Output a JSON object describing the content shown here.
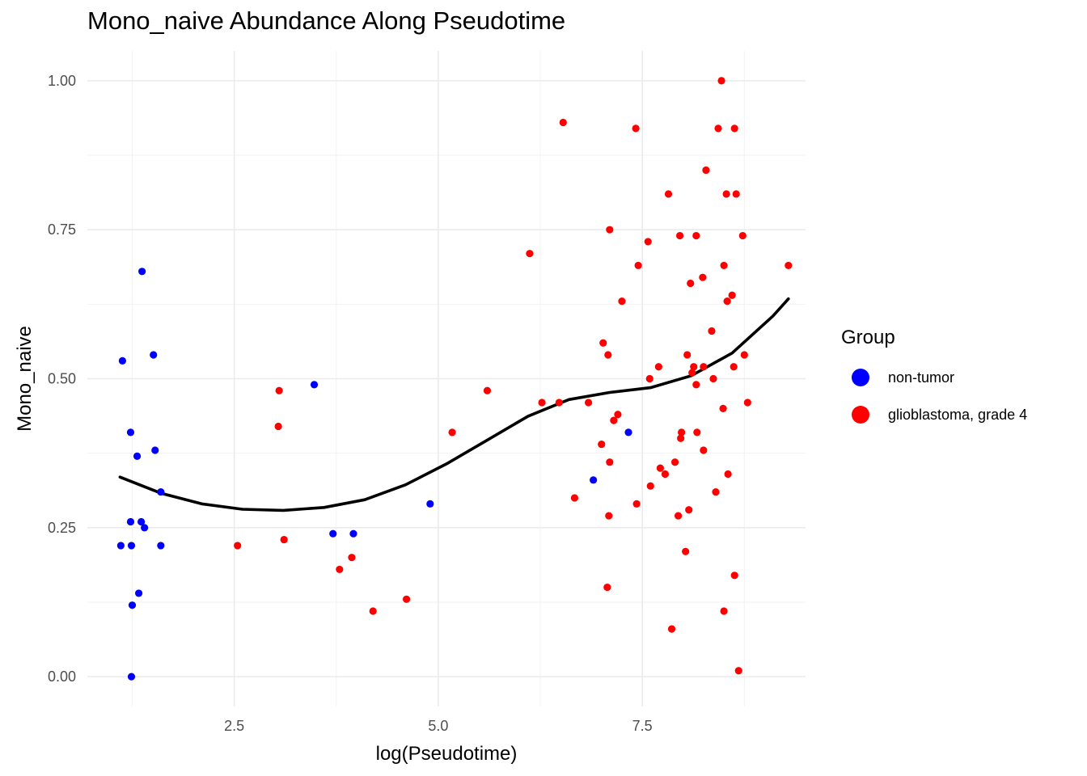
{
  "chart_data": {
    "type": "scatter",
    "title": "Mono_naive Abundance Along Pseudotime",
    "xlabel": "log(Pseudotime)",
    "ylabel": "Mono_naive",
    "xlim": [
      0.7,
      9.5
    ],
    "ylim": [
      -0.05,
      1.05
    ],
    "x_ticks": [
      2.5,
      5.0,
      7.5
    ],
    "x_tick_labels": [
      "2.5",
      "5.0",
      "7.5"
    ],
    "y_ticks": [
      0.0,
      0.25,
      0.5,
      0.75,
      1.0
    ],
    "y_tick_labels": [
      "0.00",
      "0.25",
      "0.50",
      "0.75",
      "1.00"
    ],
    "grid": true,
    "legend": {
      "title": "Group",
      "position": "right"
    },
    "series": [
      {
        "name": "non-tumor",
        "color": "#0000ff",
        "points": [
          [
            1.13,
            0.53
          ],
          [
            1.37,
            0.68
          ],
          [
            1.51,
            0.54
          ],
          [
            1.23,
            0.41
          ],
          [
            1.53,
            0.38
          ],
          [
            1.31,
            0.37
          ],
          [
            1.6,
            0.31
          ],
          [
            1.23,
            0.26
          ],
          [
            1.36,
            0.26
          ],
          [
            1.4,
            0.25
          ],
          [
            1.11,
            0.22
          ],
          [
            1.24,
            0.22
          ],
          [
            1.6,
            0.22
          ],
          [
            1.33,
            0.14
          ],
          [
            1.25,
            0.12
          ],
          [
            1.24,
            0.0
          ],
          [
            3.48,
            0.49
          ],
          [
            3.71,
            0.24
          ],
          [
            3.96,
            0.24
          ],
          [
            4.9,
            0.29
          ],
          [
            6.9,
            0.33
          ],
          [
            7.33,
            0.41
          ]
        ]
      },
      {
        "name": "glioblastoma, grade 4",
        "color": "#ff0000",
        "points": [
          [
            3.05,
            0.48
          ],
          [
            3.04,
            0.42
          ],
          [
            3.11,
            0.23
          ],
          [
            2.54,
            0.22
          ],
          [
            3.79,
            0.18
          ],
          [
            3.94,
            0.2
          ],
          [
            4.2,
            0.11
          ],
          [
            4.61,
            0.13
          ],
          [
            5.17,
            0.41
          ],
          [
            5.6,
            0.48
          ],
          [
            6.12,
            0.71
          ],
          [
            6.27,
            0.46
          ],
          [
            6.48,
            0.46
          ],
          [
            6.53,
            0.93
          ],
          [
            6.67,
            0.3
          ],
          [
            6.84,
            0.46
          ],
          [
            7.0,
            0.39
          ],
          [
            7.02,
            0.56
          ],
          [
            7.07,
            0.15
          ],
          [
            7.08,
            0.54
          ],
          [
            7.1,
            0.75
          ],
          [
            7.1,
            0.36
          ],
          [
            7.09,
            0.27
          ],
          [
            7.15,
            0.43
          ],
          [
            7.2,
            0.44
          ],
          [
            7.25,
            0.63
          ],
          [
            7.42,
            0.92
          ],
          [
            7.45,
            0.69
          ],
          [
            7.43,
            0.29
          ],
          [
            7.57,
            0.73
          ],
          [
            7.59,
            0.5
          ],
          [
            7.6,
            0.32
          ],
          [
            7.7,
            0.52
          ],
          [
            7.72,
            0.35
          ],
          [
            7.78,
            0.34
          ],
          [
            7.82,
            0.81
          ],
          [
            7.86,
            0.08
          ],
          [
            7.9,
            0.36
          ],
          [
            7.94,
            0.27
          ],
          [
            7.96,
            0.74
          ],
          [
            7.97,
            0.4
          ],
          [
            7.98,
            0.41
          ],
          [
            8.03,
            0.21
          ],
          [
            8.05,
            0.54
          ],
          [
            8.07,
            0.28
          ],
          [
            8.09,
            0.66
          ],
          [
            8.11,
            0.51
          ],
          [
            8.13,
            0.52
          ],
          [
            8.16,
            0.74
          ],
          [
            8.16,
            0.49
          ],
          [
            8.17,
            0.41
          ],
          [
            8.24,
            0.67
          ],
          [
            8.25,
            0.52
          ],
          [
            8.25,
            0.38
          ],
          [
            8.28,
            0.85
          ],
          [
            8.35,
            0.58
          ],
          [
            8.37,
            0.5
          ],
          [
            8.4,
            0.31
          ],
          [
            8.43,
            0.92
          ],
          [
            8.47,
            1.0
          ],
          [
            8.49,
            0.45
          ],
          [
            8.5,
            0.69
          ],
          [
            8.5,
            0.11
          ],
          [
            8.53,
            0.81
          ],
          [
            8.54,
            0.63
          ],
          [
            8.55,
            0.34
          ],
          [
            8.6,
            0.64
          ],
          [
            8.62,
            0.52
          ],
          [
            8.63,
            0.92
          ],
          [
            8.63,
            0.17
          ],
          [
            8.65,
            0.81
          ],
          [
            8.68,
            0.01
          ],
          [
            8.73,
            0.74
          ],
          [
            8.75,
            0.54
          ],
          [
            8.79,
            0.46
          ],
          [
            9.29,
            0.69
          ]
        ]
      }
    ],
    "trend_line": {
      "color": "#000000",
      "x": [
        1.1,
        1.6,
        2.1,
        2.6,
        3.1,
        3.6,
        4.1,
        4.6,
        5.1,
        5.6,
        6.1,
        6.6,
        7.1,
        7.6,
        8.1,
        8.6,
        9.1,
        9.29
      ],
      "y": [
        0.335,
        0.308,
        0.29,
        0.281,
        0.279,
        0.284,
        0.297,
        0.322,
        0.357,
        0.397,
        0.437,
        0.465,
        0.477,
        0.485,
        0.505,
        0.543,
        0.605,
        0.634
      ]
    }
  }
}
